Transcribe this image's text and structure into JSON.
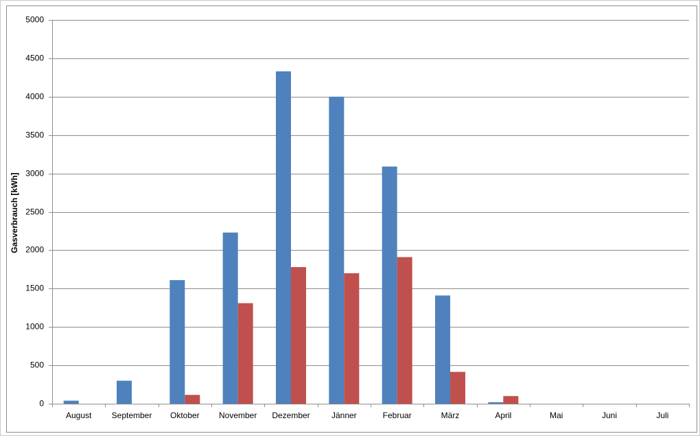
{
  "chart_data": {
    "type": "bar",
    "y_label": "Gasverbrauch [kWh]",
    "categories": [
      "August",
      "September",
      "Oktober",
      "November",
      "Dezember",
      "Jänner",
      "Februar",
      "März",
      "April",
      "Mai",
      "Juni",
      "Juli"
    ],
    "series": [
      {
        "color": "#4f81bd",
        "values": [
          40,
          300,
          1610,
          2230,
          4330,
          4000,
          3090,
          1410,
          20,
          null,
          null,
          null
        ]
      },
      {
        "color": "#c0504d",
        "values": [
          null,
          null,
          115,
          1310,
          1780,
          1700,
          1910,
          415,
          100,
          null,
          null,
          null
        ]
      }
    ],
    "ylim": [
      0,
      5000
    ],
    "yticks": [
      0,
      500,
      1000,
      1500,
      2000,
      2500,
      3000,
      3500,
      4000,
      4500,
      5000
    ],
    "grid": true
  }
}
